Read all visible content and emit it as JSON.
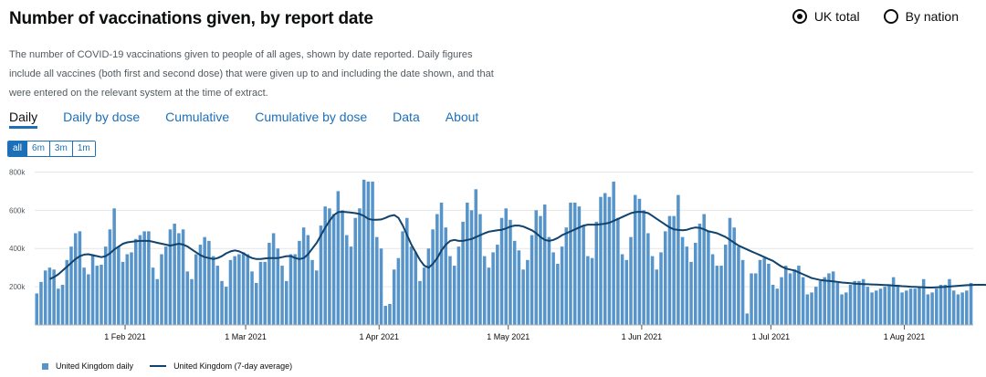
{
  "header": {
    "title": "Number of vaccinations given, by report date",
    "description": "The number of COVID-19 vaccinations given to people of all ages, shown by date reported. Daily figures include all vaccines (both first and second dose) that were given up to and including the date shown, and that were entered on the relevant system at the time of extract."
  },
  "radios": [
    {
      "label": "UK total",
      "checked": true
    },
    {
      "label": "By nation",
      "checked": false
    }
  ],
  "tabs": [
    {
      "label": "Daily",
      "active": true
    },
    {
      "label": "Daily by dose",
      "active": false
    },
    {
      "label": "Cumulative",
      "active": false
    },
    {
      "label": "Cumulative by dose",
      "active": false
    },
    {
      "label": "Data",
      "active": false
    },
    {
      "label": "About",
      "active": false
    }
  ],
  "ranges": [
    {
      "label": "all",
      "active": true
    },
    {
      "label": "6m",
      "active": false
    },
    {
      "label": "3m",
      "active": false
    },
    {
      "label": "1m",
      "active": false
    }
  ],
  "colors": {
    "bar": "#5694ca",
    "line": "#12436d",
    "grid": "#e6e6e6",
    "accent": "#1d70b8"
  },
  "chart_data": {
    "type": "bar",
    "title": "Number of vaccinations given, by report date",
    "xlabel": "",
    "ylabel": "",
    "ylim": [
      0,
      850000
    ],
    "y_ticks": [
      200000,
      400000,
      600000,
      800000
    ],
    "y_tick_labels": [
      "200k",
      "400k",
      "600k",
      "800k"
    ],
    "start_date": "2021-01-11",
    "x_ticks": [
      {
        "day": 21,
        "label": "1 Feb 2021"
      },
      {
        "day": 49,
        "label": "1 Mar 2021"
      },
      {
        "day": 80,
        "label": "1 Apr 2021"
      },
      {
        "day": 110,
        "label": "1 May 2021"
      },
      {
        "day": 141,
        "label": "1 Jun 2021"
      },
      {
        "day": 171,
        "label": "1 Jul 2021"
      },
      {
        "day": 202,
        "label": "1 Aug 2021"
      }
    ],
    "series": [
      {
        "name": "United Kingdom daily",
        "kind": "bar",
        "values": [
          165000,
          225000,
          285000,
          300000,
          290000,
          190000,
          210000,
          340000,
          410000,
          480000,
          490000,
          300000,
          265000,
          370000,
          310000,
          315000,
          410000,
          500000,
          610000,
          410000,
          330000,
          370000,
          380000,
          450000,
          470000,
          490000,
          490000,
          300000,
          240000,
          370000,
          410000,
          500000,
          530000,
          480000,
          500000,
          280000,
          240000,
          370000,
          420000,
          460000,
          440000,
          360000,
          310000,
          230000,
          200000,
          340000,
          360000,
          370000,
          380000,
          370000,
          280000,
          220000,
          330000,
          330000,
          430000,
          480000,
          400000,
          310000,
          230000,
          370000,
          370000,
          440000,
          510000,
          470000,
          340000,
          285000,
          520000,
          620000,
          610000,
          580000,
          700000,
          600000,
          470000,
          410000,
          560000,
          610000,
          760000,
          750000,
          750000,
          460000,
          400000,
          100000,
          110000,
          290000,
          350000,
          490000,
          560000,
          410000,
          380000,
          230000,
          300000,
          400000,
          500000,
          580000,
          640000,
          510000,
          360000,
          310000,
          410000,
          540000,
          640000,
          600000,
          710000,
          580000,
          360000,
          300000,
          380000,
          420000,
          560000,
          610000,
          550000,
          440000,
          390000,
          290000,
          340000,
          470000,
          600000,
          570000,
          630000,
          460000,
          380000,
          320000,
          410000,
          510000,
          640000,
          640000,
          620000,
          520000,
          360000,
          350000,
          540000,
          670000,
          690000,
          670000,
          750000,
          560000,
          370000,
          340000,
          460000,
          680000,
          660000,
          600000,
          480000,
          360000,
          290000,
          380000,
          490000,
          570000,
          570000,
          680000,
          460000,
          410000,
          330000,
          430000,
          530000,
          580000,
          490000,
          370000,
          310000,
          310000,
          420000,
          560000,
          510000,
          410000,
          340000,
          60000,
          270000,
          270000,
          340000,
          350000,
          320000,
          210000,
          190000,
          250000,
          310000,
          270000,
          290000,
          310000,
          250000,
          160000,
          170000,
          200000,
          230000,
          250000,
          270000,
          280000,
          220000,
          160000,
          170000,
          210000,
          230000,
          230000,
          240000,
          200000,
          170000,
          180000,
          190000,
          200000,
          210000,
          250000,
          210000,
          170000,
          180000,
          190000,
          190000,
          200000,
          240000,
          160000,
          170000,
          190000,
          210000,
          210000,
          240000,
          180000,
          160000,
          170000,
          180000,
          220000
        ],
        "color": "#5694ca"
      },
      {
        "name": "United Kingdom (7-day average)",
        "kind": "line",
        "start_day": 3,
        "values": [
          240000,
          250000,
          265000,
          285000,
          305000,
          325000,
          345000,
          360000,
          368000,
          370000,
          365000,
          360000,
          355000,
          360000,
          375000,
          395000,
          410000,
          425000,
          432000,
          435000,
          438000,
          440000,
          440000,
          440000,
          435000,
          430000,
          425000,
          420000,
          415000,
          420000,
          425000,
          420000,
          410000,
          395000,
          380000,
          365000,
          355000,
          350000,
          345000,
          350000,
          360000,
          375000,
          385000,
          390000,
          385000,
          375000,
          360000,
          350000,
          345000,
          345000,
          348000,
          350000,
          350000,
          350000,
          355000,
          360000,
          360000,
          350000,
          345000,
          350000,
          370000,
          400000,
          430000,
          470000,
          510000,
          545000,
          575000,
          590000,
          592000,
          590000,
          588000,
          585000,
          580000,
          570000,
          555000,
          550000,
          550000,
          552000,
          560000,
          570000,
          575000,
          560000,
          520000,
          470000,
          420000,
          380000,
          340000,
          310000,
          300000,
          320000,
          350000,
          390000,
          420000,
          440000,
          445000,
          440000,
          440000,
          445000,
          450000,
          460000,
          470000,
          480000,
          488000,
          492000,
          495000,
          498000,
          505000,
          515000,
          520000,
          520000,
          515000,
          505000,
          495000,
          480000,
          460000,
          445000,
          440000,
          445000,
          455000,
          470000,
          480000,
          490000,
          500000,
          510000,
          520000,
          525000,
          525000,
          525000,
          527000,
          530000,
          535000,
          545000,
          555000,
          565000,
          575000,
          585000,
          590000,
          592000,
          590000,
          585000,
          570000,
          555000,
          540000,
          525000,
          510000,
          500000,
          497000,
          495000,
          498000,
          505000,
          510000,
          508000,
          500000,
          490000,
          485000,
          480000,
          470000,
          460000,
          445000,
          430000,
          415000,
          405000,
          395000,
          385000,
          375000,
          365000,
          355000,
          345000,
          335000,
          320000,
          305000,
          295000,
          290000,
          285000,
          275000,
          265000,
          255000,
          245000,
          240000,
          235000,
          232000,
          230000,
          228000,
          225000,
          222000,
          220000,
          218000,
          216000,
          215000,
          214000,
          213000,
          212000,
          211000,
          210000,
          209000,
          208000,
          206000,
          205000,
          203000,
          202000,
          200000,
          199000,
          198000,
          197000,
          196000,
          196000,
          197000,
          198000,
          199000,
          201000,
          203000,
          205000,
          207000,
          208000,
          209000,
          210000,
          210000,
          210000,
          209000,
          208000
        ],
        "color": "#12436d"
      }
    ],
    "legend": [
      "United Kingdom daily",
      "United Kingdom (7-day average)"
    ],
    "legend_position": "bottom-left"
  }
}
